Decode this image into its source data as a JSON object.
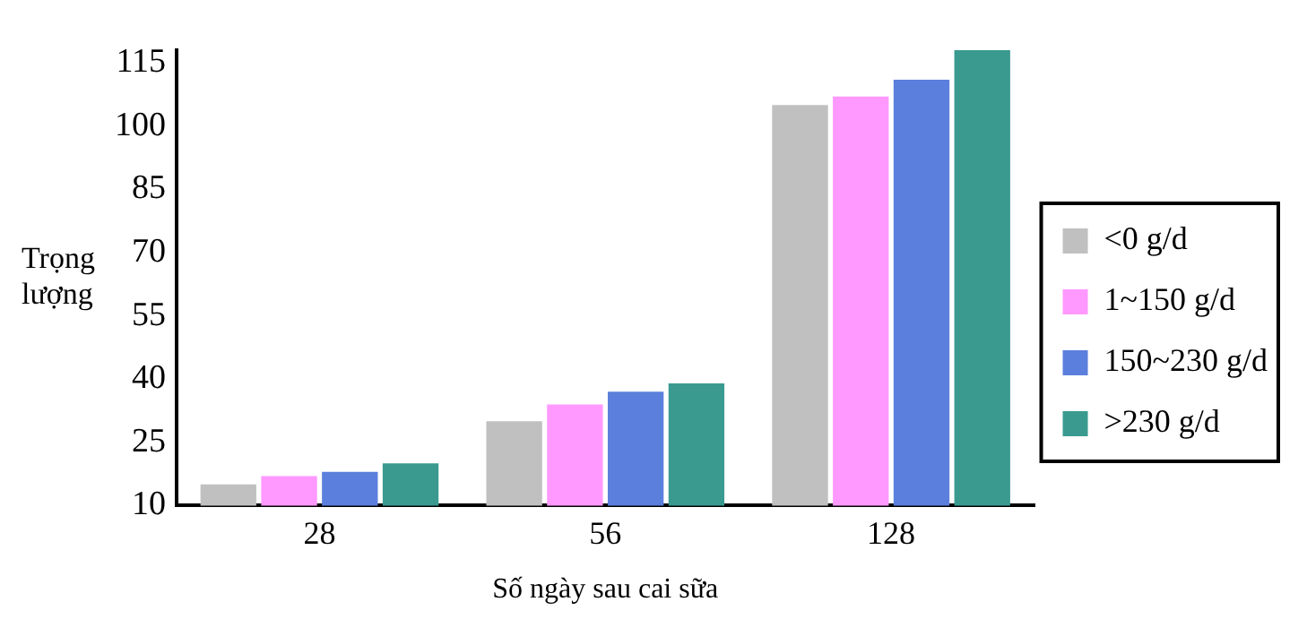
{
  "chart_data": {
    "type": "bar",
    "xlabel": "Số ngày sau cai sữa",
    "ylabel": "Trọng lượng",
    "categories": [
      "28",
      "56",
      "128"
    ],
    "series": [
      {
        "name": "<0 g/d",
        "color": "#c0c0c0",
        "values": [
          15,
          30,
          105
        ]
      },
      {
        "name": "1~150 g/d",
        "color": "#ff99ff",
        "values": [
          17,
          34,
          107
        ]
      },
      {
        "name": "150~230 g/d",
        "color": "#5b7fdc",
        "values": [
          18,
          37,
          111
        ]
      },
      {
        "name": ">230 g/d",
        "color": "#3a9a90",
        "values": [
          20,
          39,
          118
        ]
      }
    ],
    "ylim": [
      10,
      118
    ],
    "yticks": [
      10,
      25,
      40,
      55,
      70,
      85,
      100,
      115
    ],
    "grid": false,
    "legend": "right"
  }
}
